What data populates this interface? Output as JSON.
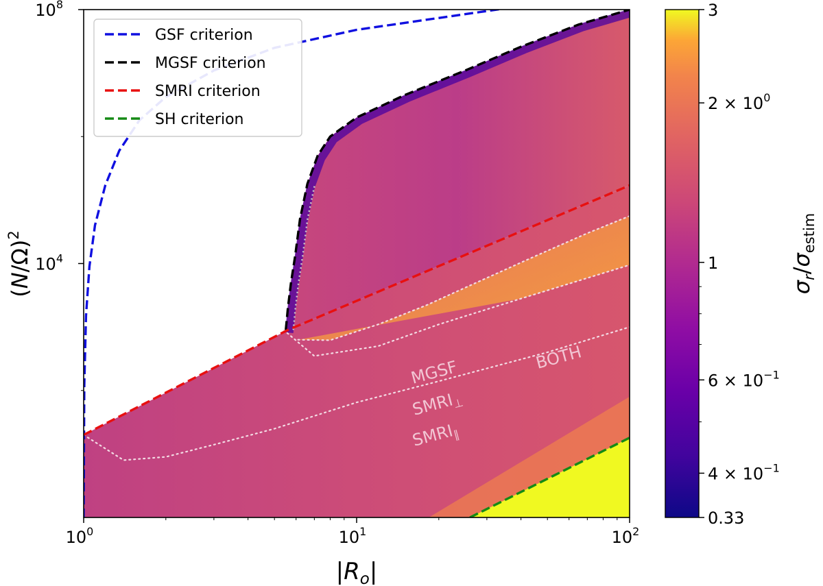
{
  "chart_data": {
    "type": "heatmap",
    "title": "",
    "xlabel": "|R_o|",
    "ylabel": "(N/Ω)^2",
    "xscale": "log",
    "yscale": "log",
    "xlim": [
      1,
      100
    ],
    "ylim": [
      1,
      100000000
    ],
    "x_ticks": [
      {
        "value": 1,
        "base": "10",
        "exp": "0"
      },
      {
        "value": 10,
        "base": "10",
        "exp": "1"
      },
      {
        "value": 100,
        "base": "10",
        "exp": "2"
      }
    ],
    "y_ticks": [
      {
        "value": 10000,
        "base": "10",
        "exp": "4"
      },
      {
        "value": 100000000,
        "base": "10",
        "exp": "8"
      }
    ],
    "y_minor_ticks": [
      100,
      1000000
    ],
    "colorbar": {
      "label": "σ_r/σ_estim",
      "scale": "log",
      "range": [
        0.33,
        3
      ],
      "colormap": "plasma",
      "ticks": [
        {
          "value": 3,
          "text": "3"
        },
        {
          "value": 2,
          "mant": "2 × 10",
          "exp": "0"
        },
        {
          "value": 1,
          "text": "1"
        },
        {
          "value": 0.6,
          "mant": "6 × 10",
          "exp": "−1"
        },
        {
          "value": 0.4,
          "mant": "4 × 10",
          "exp": "−1"
        },
        {
          "value": 0.33,
          "text": "0.33"
        }
      ],
      "minor_ticks": [
        0.5,
        0.7,
        0.8,
        0.9
      ]
    },
    "series": [
      {
        "name": "GSF criterion",
        "color": "#1010e0",
        "style": "dashed",
        "points": [
          [
            1,
            1
          ],
          [
            1.005,
            120
          ],
          [
            1.02,
            1500
          ],
          [
            1.05,
            9000
          ],
          [
            1.1,
            40000
          ],
          [
            1.2,
            170000
          ],
          [
            1.35,
            600000
          ],
          [
            1.6,
            1800000
          ],
          [
            2,
            4200000
          ],
          [
            3,
            11000000
          ],
          [
            5,
            25000000
          ],
          [
            10,
            48000000
          ],
          [
            30,
            95000000
          ],
          [
            60,
            145000000
          ],
          [
            100,
            240000000
          ]
        ]
      },
      {
        "name": "MGSF criterion",
        "color": "#000000",
        "style": "dashed",
        "points": [
          [
            5.5,
            900
          ],
          [
            5.6,
            2000
          ],
          [
            5.75,
            5000
          ],
          [
            5.95,
            13000
          ],
          [
            6.2,
            50000
          ],
          [
            6.6,
            180000
          ],
          [
            7.2,
            500000
          ],
          [
            8,
            1000000
          ],
          [
            10,
            2000000
          ],
          [
            15,
            4500000
          ],
          [
            25,
            11000000
          ],
          [
            40,
            26000000
          ],
          [
            65,
            58000000
          ],
          [
            100,
            100000000
          ]
        ]
      },
      {
        "name": "SMRI criterion",
        "color": "#e81010",
        "style": "dashed",
        "points": [
          [
            1,
            20
          ],
          [
            5.6,
            900
          ],
          [
            100,
            170000
          ]
        ]
      },
      {
        "name": "SH criterion",
        "color": "#158a15",
        "style": "dashed",
        "points": [
          [
            26,
            1
          ],
          [
            100,
            18
          ]
        ]
      }
    ],
    "boundaries": [
      {
        "name": "MGSF",
        "points": [
          [
            6.1,
            630
          ],
          [
            8,
            620
          ],
          [
            12,
            1100
          ],
          [
            18,
            2200
          ],
          [
            28,
            5200
          ],
          [
            45,
            13000
          ],
          [
            70,
            30000
          ],
          [
            100,
            56000
          ]
        ]
      },
      {
        "name": "SMRI_⊥",
        "points": [
          [
            5.4,
            900
          ],
          [
            7,
            350
          ],
          [
            12,
            500
          ],
          [
            20,
            1100
          ],
          [
            40,
            2800
          ],
          [
            70,
            5900
          ],
          [
            100,
            9500
          ]
        ]
      },
      {
        "name": "SMRI_∥",
        "points": [
          [
            1,
            20
          ],
          [
            1.4,
            8
          ],
          [
            2,
            9
          ],
          [
            3,
            14
          ],
          [
            5,
            25
          ],
          [
            10,
            65
          ],
          [
            20,
            140
          ],
          [
            50,
            400
          ],
          [
            100,
            1000
          ]
        ]
      }
    ],
    "annotations": [
      {
        "text": "MGSF",
        "at": [
          9,
          1300
        ]
      },
      {
        "text": "SMRI",
        "sub": "⊥",
        "at": [
          9,
          400
        ]
      },
      {
        "text": "SMRI",
        "sub": "∥",
        "at": [
          9,
          130
        ]
      },
      {
        "text": "BOTH",
        "at": [
          38,
          12000
        ]
      }
    ],
    "regions": [
      {
        "name": "lower band",
        "between": [
          "SMRI criterion",
          "SH criterion"
        ],
        "value": 0.98
      },
      {
        "name": "unstable MGSF region",
        "between": [
          "MGSF criterion",
          "SMRI criterion"
        ],
        "value": 1.08
      },
      {
        "name": "above SH criterion",
        "value": 3
      }
    ],
    "legend": {
      "placement": "top-left"
    }
  }
}
